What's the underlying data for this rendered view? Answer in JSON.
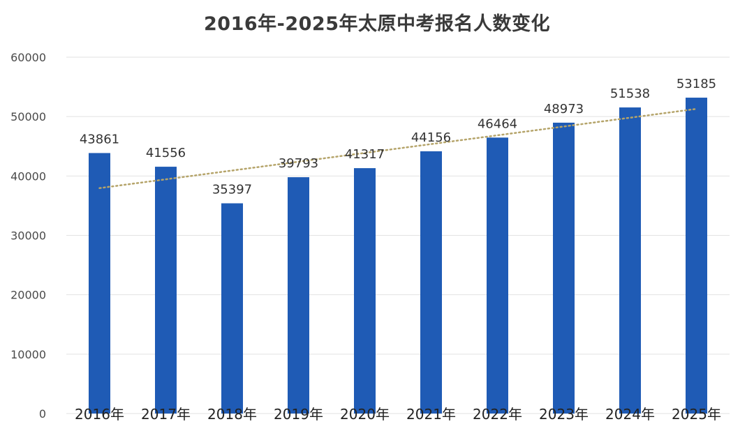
{
  "chart_data": {
    "type": "bar",
    "title": "2016年-2025年太原中考报名人数变化",
    "categories": [
      "2016年",
      "2017年",
      "2018年",
      "2019年",
      "2020年",
      "2021年",
      "2022年",
      "2023年",
      "2024年",
      "2025年"
    ],
    "values": [
      43861,
      41556,
      35397,
      39793,
      41317,
      44156,
      46464,
      48973,
      51538,
      53185
    ],
    "ylim": [
      0,
      60000
    ],
    "yticks": [
      0,
      10000,
      20000,
      30000,
      40000,
      50000,
      60000
    ],
    "xlabel": "",
    "ylabel": "",
    "grid": true,
    "legend": "none",
    "trendline": {
      "type": "linear",
      "style": "dotted"
    },
    "bar_color": "#1f5bb5",
    "trend_color": "#b5a46a"
  }
}
